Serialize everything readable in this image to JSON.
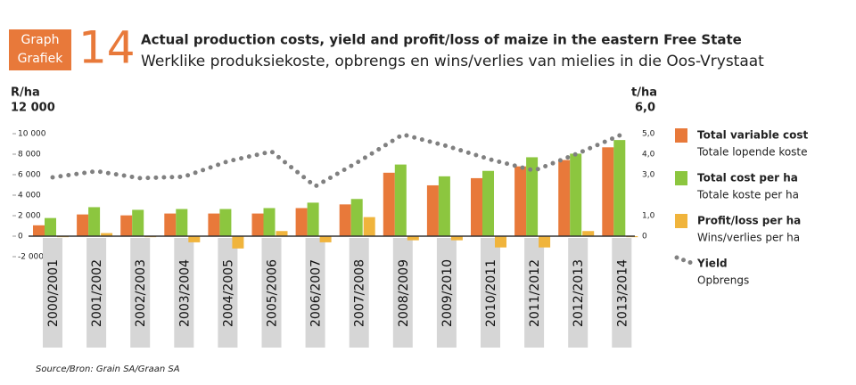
{
  "chart_data": {
    "type": "bar",
    "graph_label": "Graph",
    "graph_label_af": "Grafiek",
    "graph_number": "14",
    "title": "Actual production costs, yield and profit/loss of maize in the eastern Free State",
    "subtitle": "Werklike produksiekoste, opbrengs en wins/verlies van mielies in die Oos-Vrystaat",
    "y_label": "R/ha",
    "y2_label": "t/ha",
    "source": "Source/Bron: Grain SA/Graan SA",
    "categories": [
      "2000/2001",
      "2001/2002",
      "2002/2003",
      "2003/2004",
      "2004/2005",
      "2005/2006",
      "2006/2007",
      "2007/2008",
      "2008/2009",
      "2009/2010",
      "2010/2011",
      "2011/2012",
      "2012/2013",
      "2013/2014"
    ],
    "ylim": [
      -2000,
      12000
    ],
    "yticks": [
      {
        "value": -2000,
        "label": "-2 000"
      },
      0,
      {
        "value": 2000,
        "label": "2 000"
      },
      {
        "value": 4000,
        "label": "4 000"
      },
      {
        "value": 6000,
        "label": "6 000"
      },
      {
        "value": 8000,
        "label": "8 000"
      },
      {
        "value": 10000,
        "label": "10 000"
      },
      {
        "value": 12000,
        "label": "12 000"
      }
    ],
    "y2lim": [
      -1,
      6
    ],
    "y2ticks": [
      0,
      {
        "value": 1,
        "label": "1,0"
      },
      {
        "value": 3,
        "label": "3,0"
      },
      {
        "value": 4,
        "label": "4,0"
      },
      {
        "value": 5,
        "label": "5,0"
      },
      {
        "value": 6,
        "label": "6,0"
      }
    ],
    "series": [
      {
        "name": "Total variable cost",
        "name_af": "Totale lopende koste",
        "color": "#e8793a",
        "values": [
          1060,
          2120,
          2030,
          2210,
          2210,
          2210,
          2740,
          3100,
          6190,
          4960,
          5660,
          6810,
          7430,
          8670
        ]
      },
      {
        "name": "Total cost per ha",
        "name_af": "Totale koste per ha",
        "color": "#8cc63f",
        "values": [
          1770,
          2830,
          2570,
          2650,
          2650,
          2740,
          3270,
          3630,
          6990,
          5840,
          6370,
          7700,
          8050,
          9380
        ]
      },
      {
        "name": "Profit/loss per ha",
        "name_af": "Wins/verlies per ha",
        "color": "#f0b43c",
        "values": [
          -100,
          300,
          -100,
          -600,
          -1200,
          500,
          -600,
          1860,
          -400,
          -400,
          -1100,
          -1100,
          500,
          -100
        ]
      },
      {
        "name": "Yield",
        "name_af": "Opbrengs",
        "color": "#808080",
        "axis": "y2",
        "type": "line",
        "values": [
          2.87,
          3.17,
          2.83,
          2.9,
          3.65,
          4.13,
          2.43,
          3.65,
          4.96,
          4.4,
          3.74,
          3.2,
          4.04,
          4.96
        ]
      }
    ]
  }
}
